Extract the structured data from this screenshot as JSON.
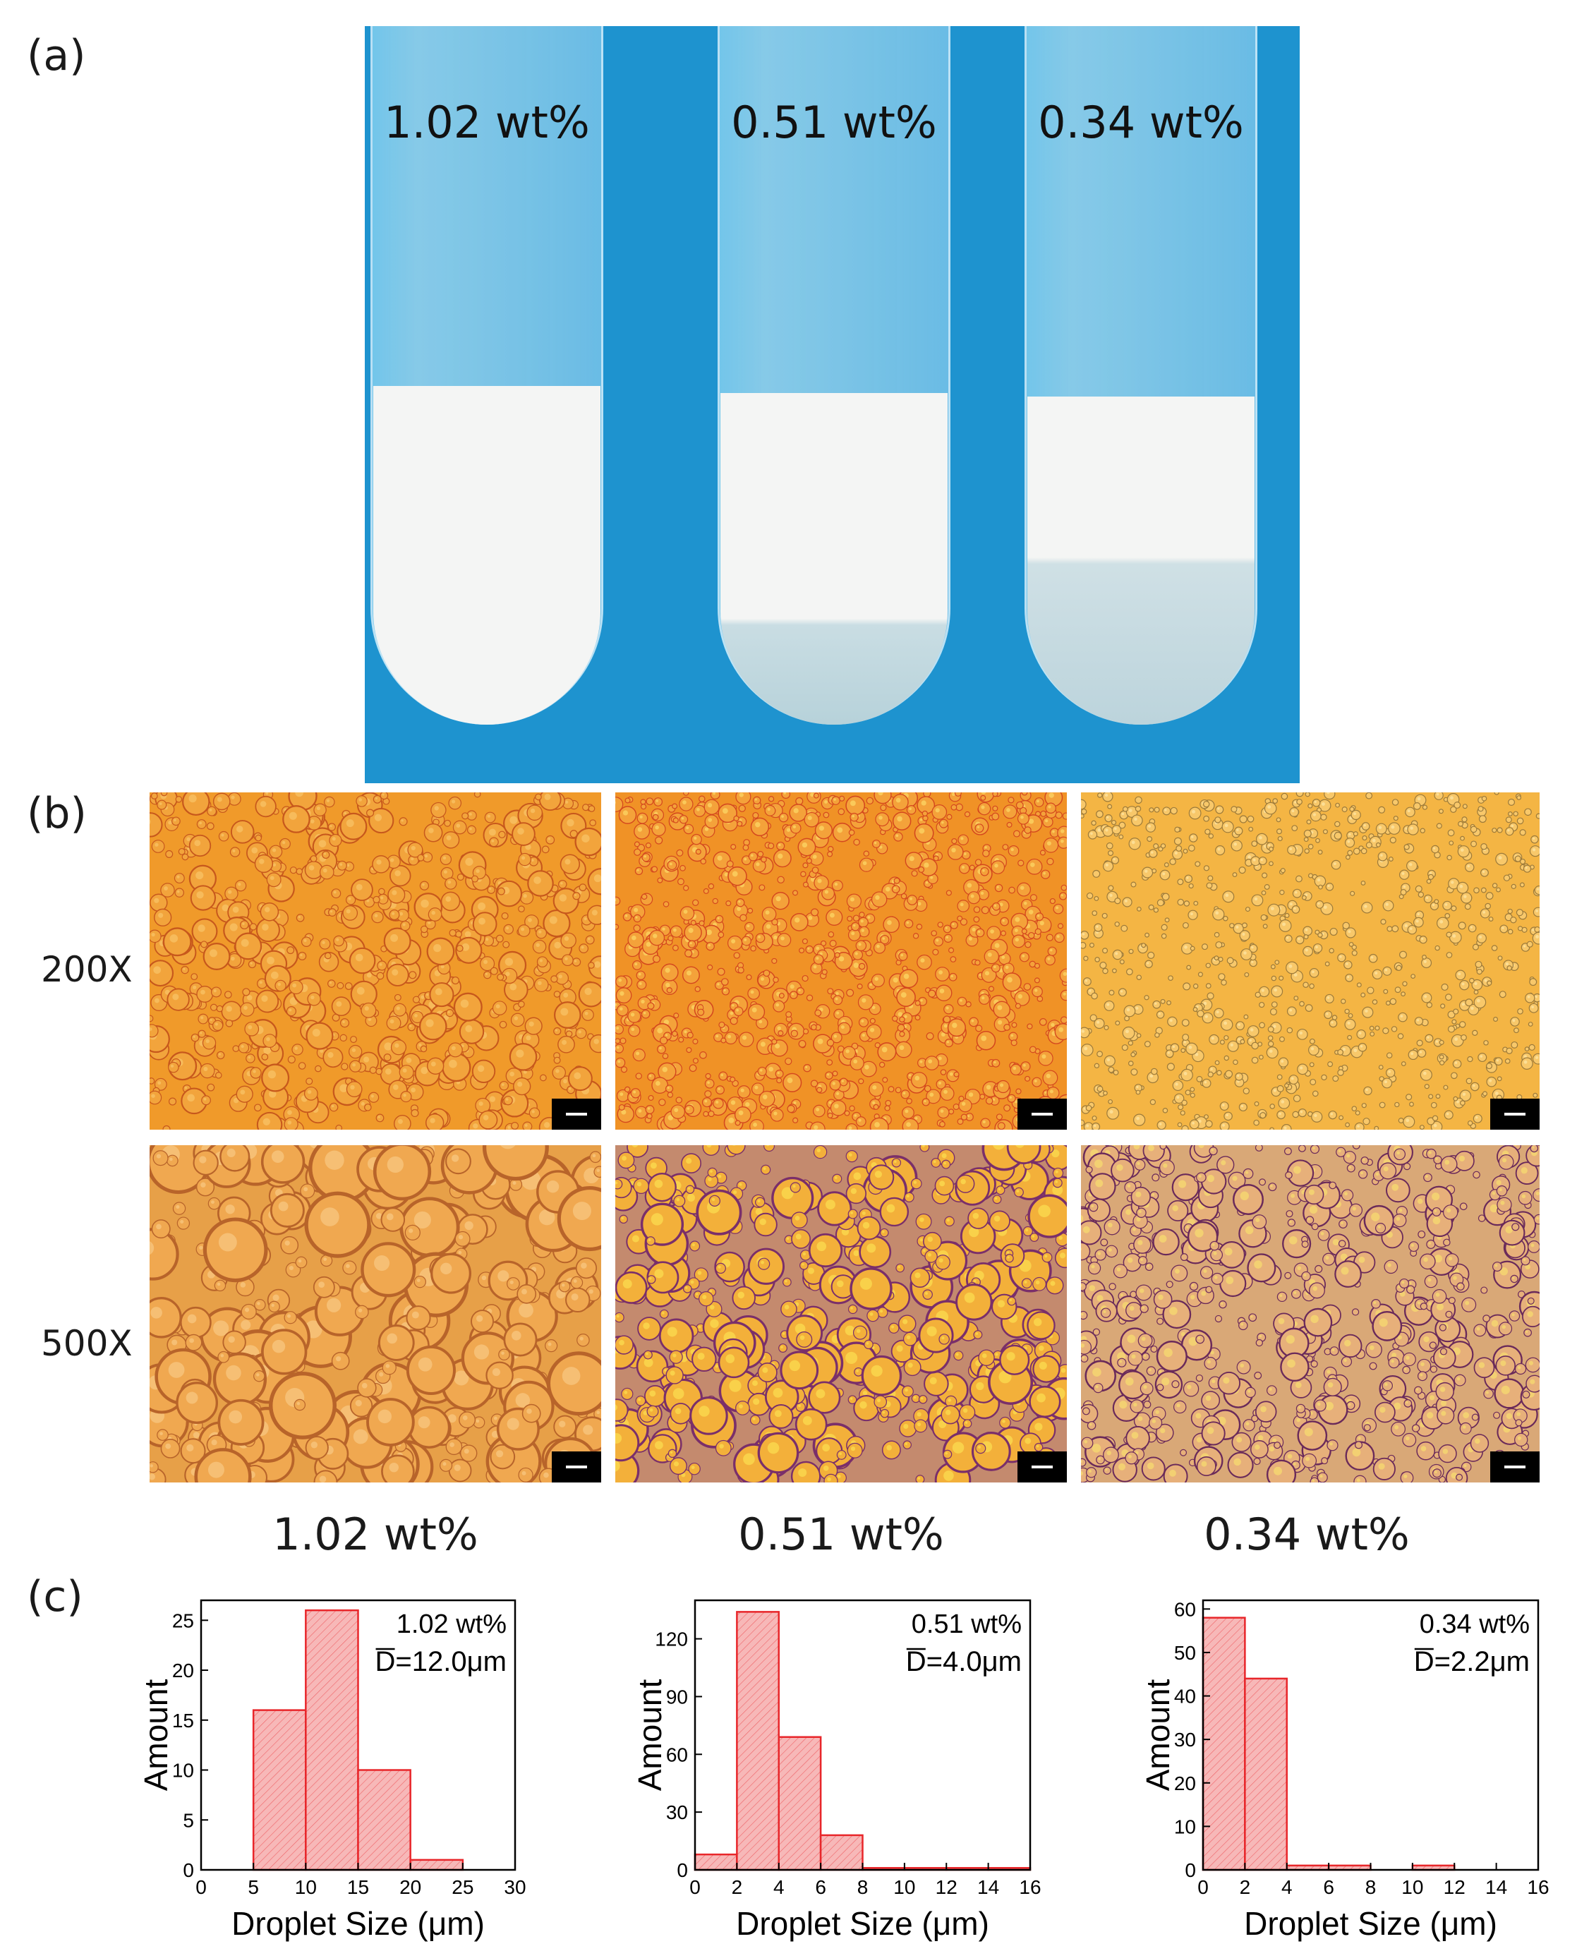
{
  "panels": {
    "a": "(a)",
    "b": "(b)",
    "c": "(c)"
  },
  "tubes": [
    {
      "label": "1.02 wt%"
    },
    {
      "label": "0.51 wt%"
    },
    {
      "label": "0.34 wt%"
    }
  ],
  "micrographs": {
    "row_labels": [
      "200X",
      "500X"
    ],
    "column_labels": [
      "1.02 wt%",
      "0.51 wt%",
      "0.34 wt%"
    ]
  },
  "chart_data": [
    {
      "type": "bar",
      "legend": [
        "1.02 wt%",
        "D=12.0μm"
      ],
      "xlabel": "Droplet Size (μm)",
      "ylabel": "Amount",
      "bins": [
        [
          5,
          10
        ],
        [
          10,
          15
        ],
        [
          15,
          20
        ],
        [
          20,
          25
        ]
      ],
      "values": [
        16,
        26,
        10,
        1
      ],
      "xlim": [
        0,
        30
      ],
      "ylim": [
        0,
        27
      ],
      "xticks": [
        0,
        5,
        10,
        15,
        20,
        25,
        30
      ],
      "yticks": [
        0,
        5,
        10,
        15,
        20,
        25
      ]
    },
    {
      "type": "bar",
      "legend": [
        "0.51 wt%",
        "D=4.0μm"
      ],
      "xlabel": "Droplet Size (μm)",
      "ylabel": "Amount",
      "bins": [
        [
          0,
          2
        ],
        [
          2,
          4
        ],
        [
          4,
          6
        ],
        [
          6,
          8
        ],
        [
          8,
          10
        ],
        [
          10,
          12
        ],
        [
          12,
          14
        ],
        [
          14,
          16
        ]
      ],
      "values": [
        8,
        134,
        69,
        18,
        1,
        1,
        1,
        1
      ],
      "xlim": [
        0,
        16
      ],
      "ylim": [
        0,
        140
      ],
      "xticks": [
        0,
        2,
        4,
        6,
        8,
        10,
        12,
        14,
        16
      ],
      "yticks": [
        0,
        30,
        60,
        90,
        120
      ]
    },
    {
      "type": "bar",
      "legend": [
        "0.34 wt%",
        "D=2.2μm"
      ],
      "xlabel": "Droplet Size (μm)",
      "ylabel": "Amount",
      "bins": [
        [
          0,
          2
        ],
        [
          2,
          4
        ],
        [
          4,
          6
        ],
        [
          6,
          8
        ],
        [
          10,
          12
        ]
      ],
      "values": [
        58,
        44,
        1,
        1,
        1
      ],
      "xlim": [
        0,
        16
      ],
      "ylim": [
        0,
        62
      ],
      "xticks": [
        0,
        2,
        4,
        6,
        8,
        10,
        12,
        14,
        16
      ],
      "yticks": [
        0,
        10,
        20,
        30,
        40,
        50,
        60
      ]
    }
  ],
  "colors": {
    "bar_fill": "#f7b8b8",
    "bar_edge": "#e8262a",
    "photo_bg": "#1e93cf"
  }
}
